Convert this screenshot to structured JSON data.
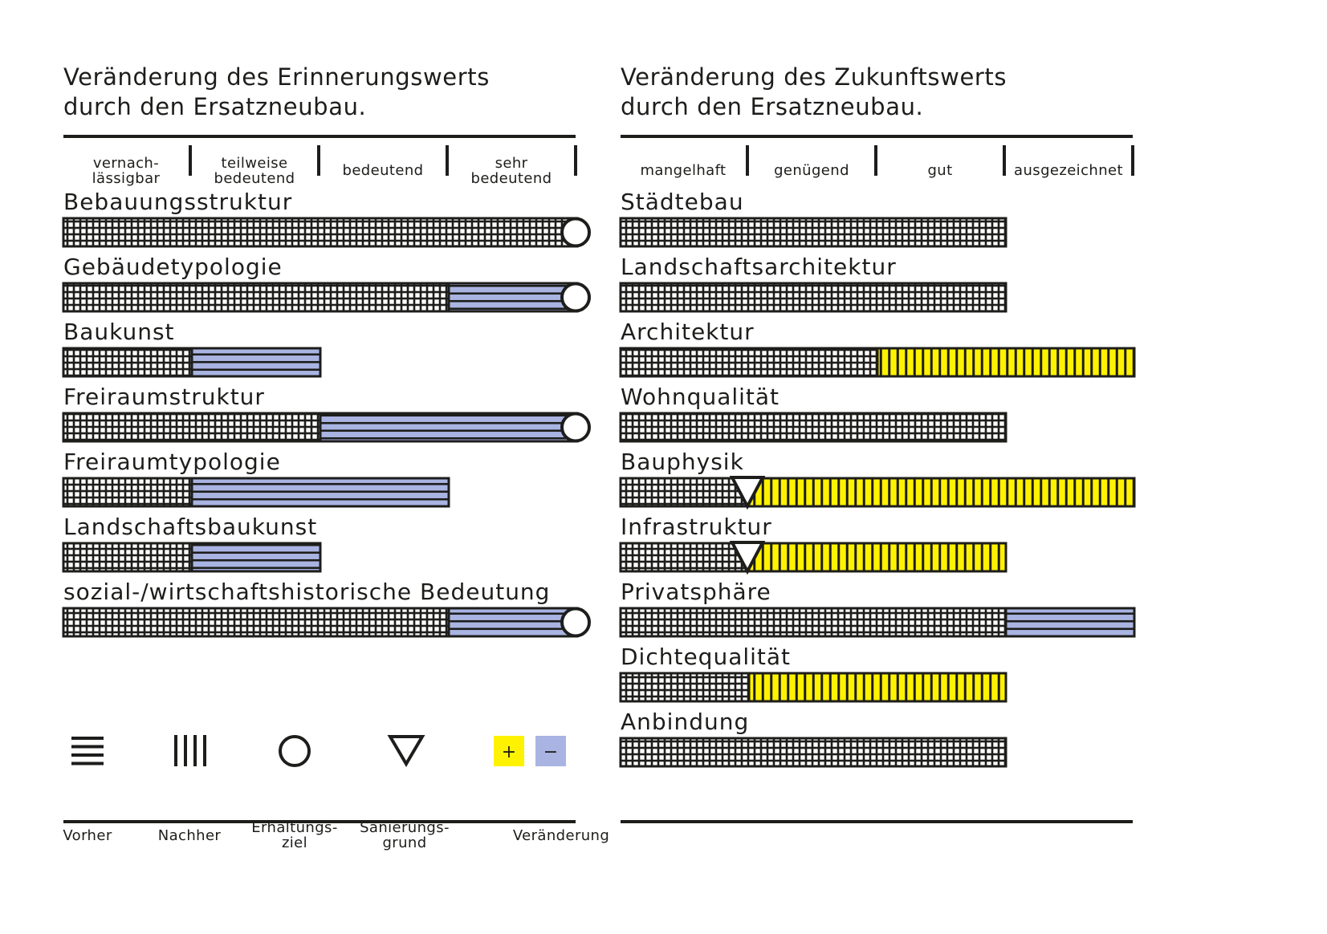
{
  "chart_data": [
    {
      "type": "bar",
      "title": "Veränderung des Erinnerungswerts\ndurch den Ersatzneubau.",
      "scale": [
        "vernach-\nlässigbar",
        "teilweise\nbedeutend",
        "bedeutend",
        "sehr\nbedeutend"
      ],
      "xlim": [
        0,
        4
      ],
      "rows": [
        {
          "label": "Bebauungsstruktur",
          "before": 4,
          "after": 4,
          "marker": "Erhaltungsziel"
        },
        {
          "label": "Gebäudetypologie",
          "before": 4,
          "after": 3,
          "marker": "Erhaltungsziel"
        },
        {
          "label": "Baukunst",
          "before": 2,
          "after": 1,
          "marker": ""
        },
        {
          "label": "Freiraumstruktur",
          "before": 4,
          "after": 2,
          "marker": "Erhaltungsziel"
        },
        {
          "label": "Freiraumtypologie",
          "before": 3,
          "after": 1,
          "marker": ""
        },
        {
          "label": "Landschaftsbaukunst",
          "before": 2,
          "after": 1,
          "marker": ""
        },
        {
          "label": "sozial-/wirtschaftshistorische  Bedeutung",
          "before": 4,
          "after": 3,
          "marker": "Erhaltungsziel"
        }
      ]
    },
    {
      "type": "bar",
      "title": "Veränderung des Zukunftswerts\ndurch den Ersatzneubau.",
      "scale": [
        "mangelhaft",
        "genügend",
        "gut",
        "ausgezeichnet"
      ],
      "xlim": [
        0,
        4
      ],
      "rows": [
        {
          "label": "Städtebau",
          "before": 3,
          "after": 3,
          "marker": ""
        },
        {
          "label": "Landschaftsarchitektur",
          "before": 3,
          "after": 3,
          "marker": ""
        },
        {
          "label": "Architektur",
          "before": 2,
          "after": 4,
          "marker": ""
        },
        {
          "label": "Wohnqualität",
          "before": 3,
          "after": 3,
          "marker": ""
        },
        {
          "label": "Bauphysik",
          "before": 1,
          "after": 4,
          "marker": "Sanierungsgrund"
        },
        {
          "label": "Infrastruktur",
          "before": 1,
          "after": 3,
          "marker": "Sanierungsgrund"
        },
        {
          "label": "Privatsphäre",
          "before": 4,
          "after": 3,
          "marker": ""
        },
        {
          "label": "Dichtequalität",
          "before": 1,
          "after": 3,
          "marker": ""
        },
        {
          "label": "Anbindung",
          "before": 3,
          "after": 3,
          "marker": ""
        }
      ]
    }
  ],
  "legend": [
    {
      "key": "vorher",
      "label": "Vorher",
      "icon": "horizontal-lines-icon"
    },
    {
      "key": "nachher",
      "label": "Nachher",
      "icon": "vertical-lines-icon"
    },
    {
      "key": "erhaltungsziel",
      "label": "Erhaltungs-\nziel",
      "icon": "circle-icon"
    },
    {
      "key": "sanierungsgrund",
      "label": "Sanierungs-\ngrund",
      "icon": "triangle-down-icon"
    },
    {
      "key": "veraenderung",
      "label": "Veränderung",
      "icon": "plus-minus-icon",
      "plus": "+",
      "minus": "−"
    }
  ],
  "colors": {
    "ink": "#1d1d1b",
    "increase": "#fff200",
    "decrease": "#a9b4e2",
    "background": "#ffffff"
  }
}
